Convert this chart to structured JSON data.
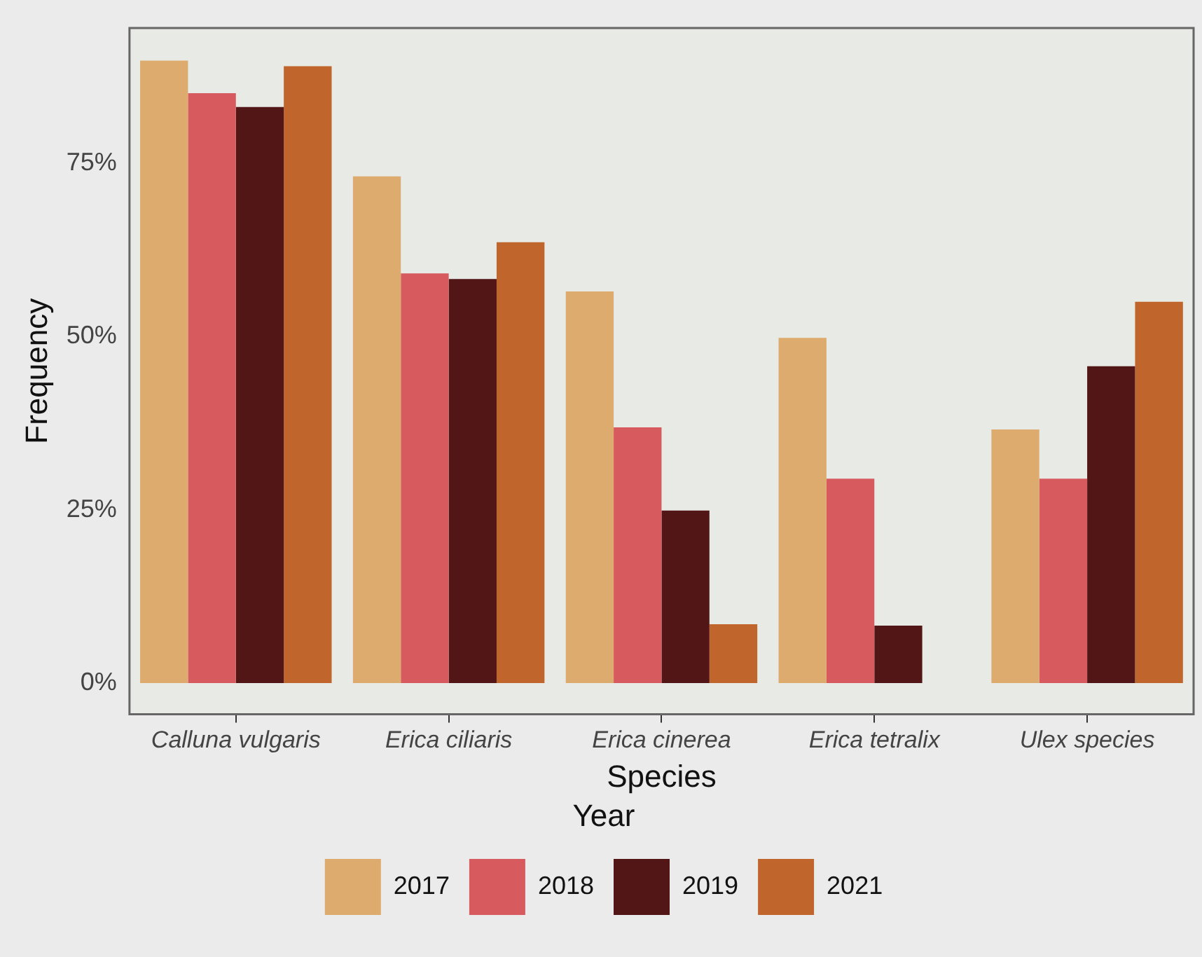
{
  "chart_data": {
    "type": "bar",
    "xlabel": "Species",
    "ylabel": "Frequency",
    "legend_title": "Year",
    "categories": [
      "Calluna vulgaris",
      "Erica ciliaris",
      "Erica cinerea",
      "Erica tetralix",
      "Ulex species"
    ],
    "series": [
      {
        "name": "2017",
        "color": "#ddab6d",
        "values": [
          89.8,
          73.1,
          56.5,
          49.8,
          36.6
        ]
      },
      {
        "name": "2018",
        "color": "#d75a5e",
        "values": [
          85.1,
          59.1,
          36.9,
          29.5,
          29.5
        ]
      },
      {
        "name": "2019",
        "color": "#521617",
        "values": [
          83.1,
          58.3,
          24.9,
          8.3,
          45.7
        ]
      },
      {
        "name": "2021",
        "color": "#c0662d",
        "values": [
          89.0,
          63.6,
          8.5,
          null,
          55.0
        ]
      }
    ],
    "ylim": [
      -4.5,
      94.5
    ],
    "yticks": [
      {
        "value": 0,
        "label": "0%"
      },
      {
        "value": 25,
        "label": "25%"
      },
      {
        "value": 50,
        "label": "50%"
      },
      {
        "value": 75,
        "label": "75%"
      }
    ],
    "grid": false,
    "legend": "bottom"
  }
}
